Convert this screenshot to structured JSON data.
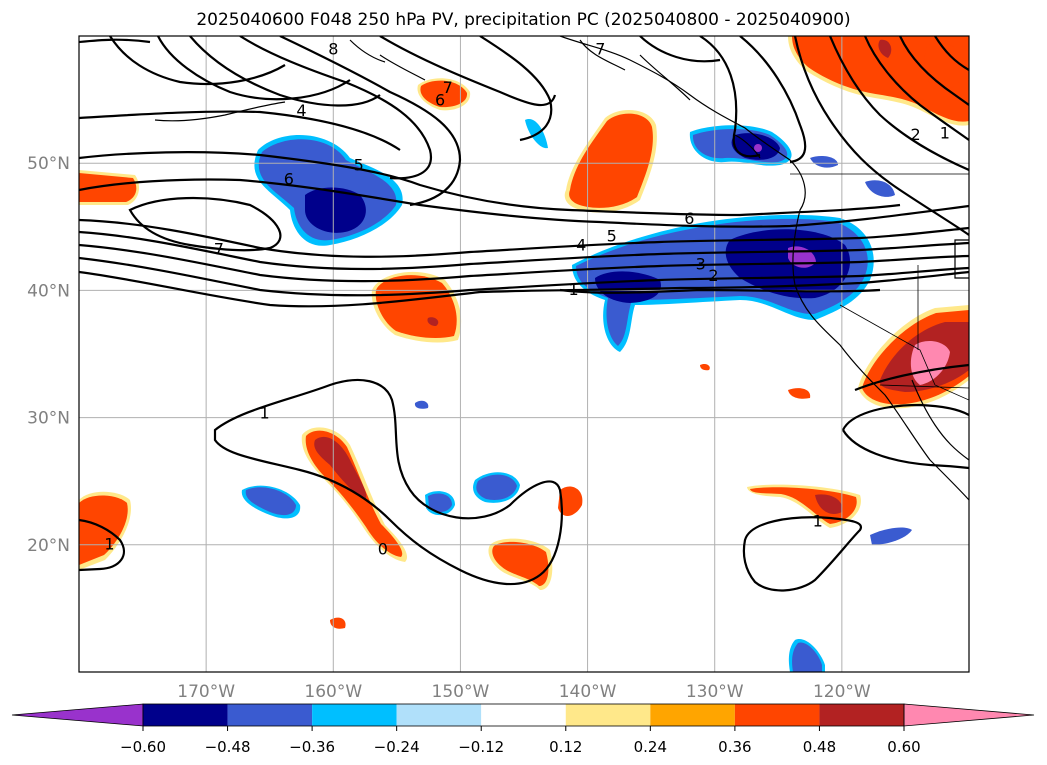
{
  "chart_data": {
    "type": "heatmap",
    "title": "2025040600 F048 250 hPa PV, precipitation PC (2025040800 - 2025040900)",
    "map": {
      "lon_range": [
        -180,
        -110
      ],
      "lat_range": [
        10,
        60
      ],
      "lon_ticks": [
        -170,
        -160,
        -150,
        -140,
        -130,
        -120
      ],
      "lon_tick_labels": [
        "170°W",
        "160°W",
        "150°W",
        "140°W",
        "130°W",
        "120°W"
      ],
      "lat_ticks": [
        20,
        30,
        40,
        50
      ],
      "lat_tick_labels": [
        "20°N",
        "30°N",
        "40°N",
        "50°N"
      ],
      "grid": true
    },
    "colorbar": {
      "orientation": "horizontal",
      "extend": "both",
      "boundaries": [
        -0.6,
        -0.48,
        -0.36,
        -0.24,
        -0.12,
        0.12,
        0.24,
        0.36,
        0.48,
        0.6
      ],
      "tick_labels": [
        "−0.60",
        "−0.48",
        "−0.36",
        "−0.24",
        "−0.12",
        "0.12",
        "0.24",
        "0.36",
        "0.48",
        "0.60"
      ],
      "colors": [
        "#9932cc",
        "#00008b",
        "#3a5bd0",
        "#00bfff",
        "#b0e0fa",
        "#ffffff",
        "#ffe88a",
        "#ffa500",
        "#ff4500",
        "#b22222",
        "#ff88b0"
      ]
    },
    "pv_contour_labels": [
      {
        "text": "8",
        "lon": -160,
        "lat": 59
      },
      {
        "text": "7",
        "lon": -139,
        "lat": 59
      },
      {
        "text": "7",
        "lon": -151,
        "lat": 56
      },
      {
        "text": "6",
        "lon": -151.6,
        "lat": 55
      },
      {
        "text": "4",
        "lon": -162.5,
        "lat": 54.2
      },
      {
        "text": "5",
        "lon": -158,
        "lat": 49.9
      },
      {
        "text": "6",
        "lon": -163.5,
        "lat": 48.8
      },
      {
        "text": "7",
        "lon": -169,
        "lat": 43.3
      },
      {
        "text": "6",
        "lon": -132,
        "lat": 45.7
      },
      {
        "text": "5",
        "lon": -138.1,
        "lat": 44.3
      },
      {
        "text": "4",
        "lon": -140.5,
        "lat": 43.6
      },
      {
        "text": "3",
        "lon": -131.1,
        "lat": 42.1
      },
      {
        "text": "2",
        "lon": -130.1,
        "lat": 41.2
      },
      {
        "text": "1",
        "lon": -141.1,
        "lat": 40.1
      },
      {
        "text": "2",
        "lon": -114.2,
        "lat": 52.3
      },
      {
        "text": "1",
        "lon": -111.9,
        "lat": 52.4
      },
      {
        "text": "1",
        "lon": -165.4,
        "lat": 30.4
      },
      {
        "text": "1",
        "lon": -177.6,
        "lat": 20.1
      },
      {
        "text": "0",
        "lon": -156.1,
        "lat": 19.7
      },
      {
        "text": "1",
        "lon": -121.9,
        "lat": 21.9
      }
    ],
    "precip_anomaly_regions": [
      {
        "lon": -159,
        "lat": 47.5,
        "value": -0.45
      },
      {
        "lon": -159.4,
        "lat": 46.6,
        "value": -0.55
      },
      {
        "lon": -127.3,
        "lat": 50.4,
        "value": -0.5
      },
      {
        "lon": -126.7,
        "lat": 50.2,
        "value": -0.65
      },
      {
        "lon": -129.2,
        "lat": 41.6,
        "value": -0.4
      },
      {
        "lon": -123.4,
        "lat": 42.5,
        "value": -0.55
      },
      {
        "lon": -122.5,
        "lat": 42.7,
        "value": -0.65
      },
      {
        "lon": -138.2,
        "lat": 40.2,
        "value": -0.55
      },
      {
        "lon": -164.7,
        "lat": 23.5,
        "value": -0.36
      },
      {
        "lon": -144.5,
        "lat": 24.6,
        "value": -0.36
      },
      {
        "lon": -149.3,
        "lat": 23.3,
        "value": -0.36
      },
      {
        "lon": -122.6,
        "lat": 13.2,
        "value": -0.36
      },
      {
        "lon": -136.6,
        "lat": 51.9,
        "value": 0.4
      },
      {
        "lon": -114.4,
        "lat": 56.9,
        "value": 0.4
      },
      {
        "lon": -151.6,
        "lat": 39.5,
        "value": 0.4
      },
      {
        "lon": -151,
        "lat": 38,
        "value": 0.5
      },
      {
        "lon": -112.9,
        "lat": 34.2,
        "value": 0.45
      },
      {
        "lon": -112.2,
        "lat": 34.6,
        "value": 0.65
      },
      {
        "lon": -159.8,
        "lat": 24.9,
        "value": 0.4
      },
      {
        "lon": -159.7,
        "lat": 25.6,
        "value": 0.5
      },
      {
        "lon": -144.8,
        "lat": 18.4,
        "value": 0.4
      },
      {
        "lon": -178.4,
        "lat": 22.3,
        "value": 0.4
      },
      {
        "lon": -120.8,
        "lat": 22.5,
        "value": 0.4
      },
      {
        "lon": -177,
        "lat": 48.1,
        "value": 0.4
      }
    ]
  }
}
